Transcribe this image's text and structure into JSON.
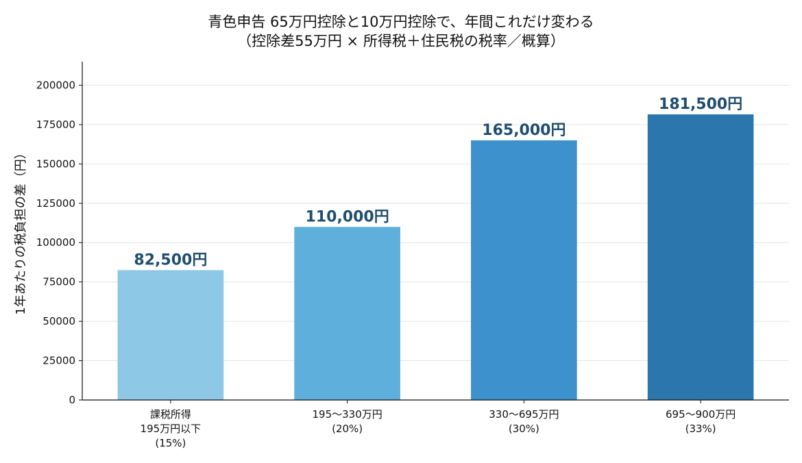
{
  "chart_data": {
    "type": "bar",
    "title_lines": [
      "青色申告 65万円控除と10万円控除で、年間これだけ変わる",
      "（控除差55万円 × 所得税＋住民税の税率／概算）"
    ],
    "xlabel": "",
    "ylabel": "1年あたりの税負担の差（円）",
    "categories": [
      [
        "課税所得",
        "195万円以下",
        "(15%)"
      ],
      [
        "195〜330万円",
        "(20%)"
      ],
      [
        "330〜695万円",
        "(30%)"
      ],
      [
        "695〜900万円",
        "(33%)"
      ]
    ],
    "values": [
      82500,
      110000,
      165000,
      181500
    ],
    "data_labels": [
      "82,500円",
      "110,000円",
      "165,000円",
      "181,500円"
    ],
    "bar_colors": [
      "#8dc8e6",
      "#5eafdc",
      "#3d91cd",
      "#2b76ad"
    ],
    "label_color": "#1f4e6e",
    "ylim": [
      0,
      215000
    ],
    "yticks": [
      0,
      25000,
      50000,
      75000,
      100000,
      125000,
      150000,
      175000,
      200000
    ],
    "ytick_labels": [
      "0",
      "25000",
      "50000",
      "75000",
      "100000",
      "125000",
      "150000",
      "175000",
      "200000"
    ],
    "grid": true,
    "legend": "none"
  }
}
